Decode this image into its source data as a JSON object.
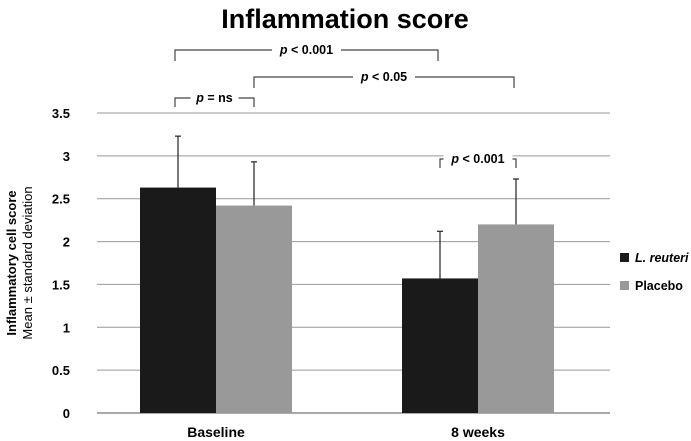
{
  "chart_data": {
    "type": "bar",
    "title": "Inflammation score",
    "ylabel": "Inflammatory cell score",
    "ylabel_sub": "Mean ± standard deviation",
    "xlabel": "",
    "categories": [
      "Baseline",
      "8 weeks"
    ],
    "ylim": [
      0,
      3.5
    ],
    "yticks": [
      "0",
      "0.5",
      "1",
      "1.5",
      "2",
      "2.5",
      "3",
      "3.5"
    ],
    "grid": true,
    "legend_position": "right",
    "series": [
      {
        "name": "L. reuteri",
        "color": "#1a1a1a",
        "values": [
          2.63,
          1.57
        ],
        "errors": [
          0.6,
          0.55
        ]
      },
      {
        "name": "Placebo",
        "color": "#999999",
        "values": [
          2.42,
          2.2
        ],
        "errors": [
          0.51,
          0.53
        ]
      }
    ],
    "annotations": [
      {
        "label": "p < 0.001",
        "p": "p",
        "rest": " < 0.001",
        "from": [
          0,
          0
        ],
        "to": [
          1,
          0
        ]
      },
      {
        "label": "p < 0.05",
        "p": "p",
        "rest": " < 0.05",
        "from": [
          0,
          1
        ],
        "to": [
          1,
          1
        ]
      },
      {
        "label": "p = ns",
        "p": "p",
        "rest": " = ns",
        "from": [
          0,
          0
        ],
        "to": [
          0,
          1
        ]
      },
      {
        "label": "p < 0.001",
        "p": "p",
        "rest": " < 0.001",
        "from": [
          1,
          0
        ],
        "to": [
          1,
          1
        ]
      }
    ]
  }
}
